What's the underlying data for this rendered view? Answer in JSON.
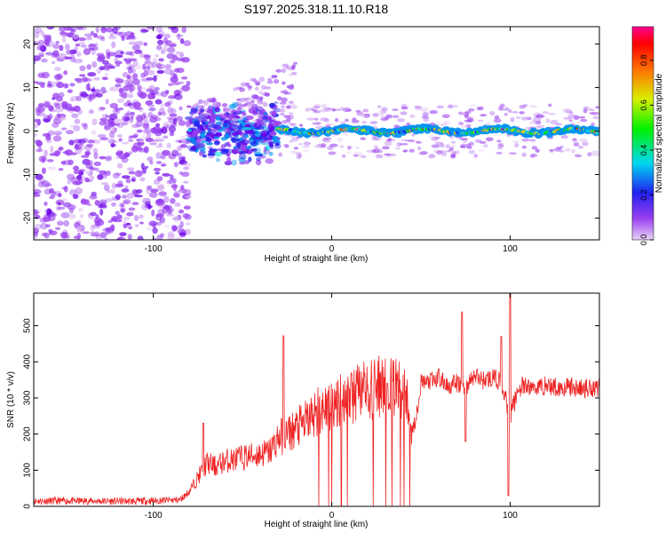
{
  "page": {
    "title": "S197.2025.318.11.10.R18"
  },
  "colors": {
    "snr_line": "#ee2222",
    "colormap": [
      "#d8b0f0",
      "#9a40f0",
      "#6a00e8",
      "#2020f0",
      "#0090f0",
      "#00e0e0",
      "#00f000",
      "#c0f000",
      "#ffd000",
      "#ff7000",
      "#ff0000",
      "#ff0090"
    ]
  },
  "chart_data": [
    {
      "type": "heatmap",
      "title": "S197.2025.318.11.10.R18",
      "xlabel": "Height of straight line (km)",
      "ylabel": "Frequency (Hz)",
      "xlim": [
        -167,
        150
      ],
      "ylim": [
        -25,
        24
      ],
      "x_ticks": [
        -100,
        0,
        100
      ],
      "y_ticks": [
        -20,
        -10,
        0,
        10,
        20
      ],
      "colorbar": {
        "label": "Normalized spectral amplitude",
        "range": [
          0.0,
          0.95
        ],
        "ticks": [
          0.0,
          0.2,
          0.4,
          0.6,
          0.8
        ]
      },
      "regions": [
        {
          "x": [
            -167,
            -80
          ],
          "description_value": "broadband noise, amplitude 0.05-0.2 across all frequencies"
        },
        {
          "x": [
            -80,
            -30
          ],
          "freq_center": 0,
          "spread_hz": 6,
          "amplitude": [
            0.15,
            0.4
          ],
          "upper_wisp_to_hz": 13
        },
        {
          "x": [
            -30,
            150
          ],
          "freq_center": 0,
          "spread_hz": 1.5,
          "amplitude": [
            0.3,
            0.95
          ]
        }
      ]
    },
    {
      "type": "line",
      "xlabel": "Height of straight line (km)",
      "ylabel": "SNR (10 * v/v)",
      "xlim": [
        -167,
        150
      ],
      "ylim": [
        0,
        590
      ],
      "x_ticks": [
        -100,
        0,
        100
      ],
      "y_ticks": [
        0,
        100,
        200,
        300,
        400,
        500
      ],
      "series": [
        {
          "x": [
            -167,
            -140,
            -110,
            -85,
            -80,
            -75,
            -70,
            -65,
            -60,
            -55,
            -50,
            -45,
            -40,
            -35,
            -30,
            -25,
            -20,
            -15,
            -10,
            -5,
            0,
            5,
            10,
            15,
            20,
            25,
            30,
            35,
            40,
            44,
            46,
            50,
            55,
            60,
            65,
            70,
            75,
            80,
            85,
            90,
            95,
            100,
            105,
            110,
            115,
            120,
            125,
            130,
            135,
            140,
            145,
            150
          ],
          "y": [
            15,
            15,
            14,
            18,
            40,
            80,
            120,
            110,
            125,
            130,
            135,
            140,
            145,
            150,
            190,
            200,
            215,
            230,
            255,
            270,
            285,
            300,
            300,
            310,
            320,
            330,
            330,
            335,
            335,
            230,
            215,
            340,
            345,
            350,
            335,
            340,
            330,
            360,
            350,
            355,
            345,
            250,
            330,
            330,
            330,
            335,
            330,
            330,
            330,
            325,
            330,
            330
          ]
        }
      ],
      "spikes": [
        {
          "x": -72,
          "y": 230
        },
        {
          "x": -27,
          "y": 472
        },
        {
          "x": 60,
          "y": 380
        },
        {
          "x": 73,
          "y": 538
        },
        {
          "x": 75,
          "y": 180
        },
        {
          "x": 95,
          "y": 470
        },
        {
          "x": 100,
          "y": 590
        },
        {
          "x": 99,
          "y": 30
        }
      ],
      "dips_to_zero_x_range": [
        -10,
        44
      ]
    }
  ]
}
